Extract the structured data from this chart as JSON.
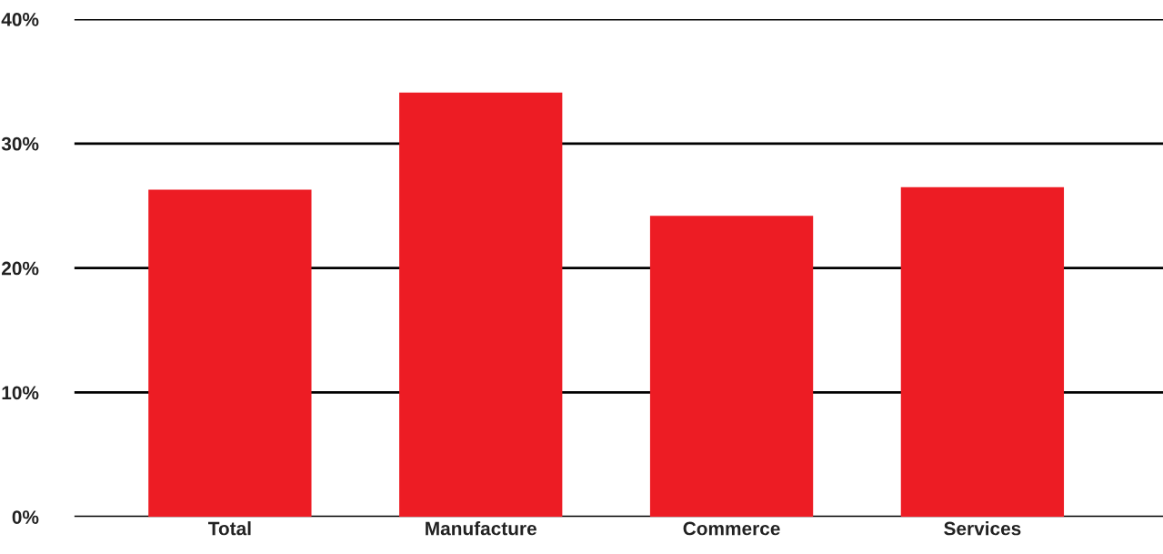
{
  "chart_data": {
    "type": "bar",
    "categories": [
      "Total",
      "Manufacture",
      "Commerce",
      "Services"
    ],
    "values": [
      26.3,
      34.1,
      24.2,
      26.5
    ],
    "color": "#ed1c24",
    "ylim": [
      0,
      40
    ],
    "yticks": [
      {
        "value": 0,
        "label": "0%"
      },
      {
        "value": 10,
        "label": "10%"
      },
      {
        "value": 20,
        "label": "20%"
      },
      {
        "value": 30,
        "label": "30%"
      },
      {
        "value": 40,
        "label": "40%"
      }
    ],
    "grid": "y"
  }
}
